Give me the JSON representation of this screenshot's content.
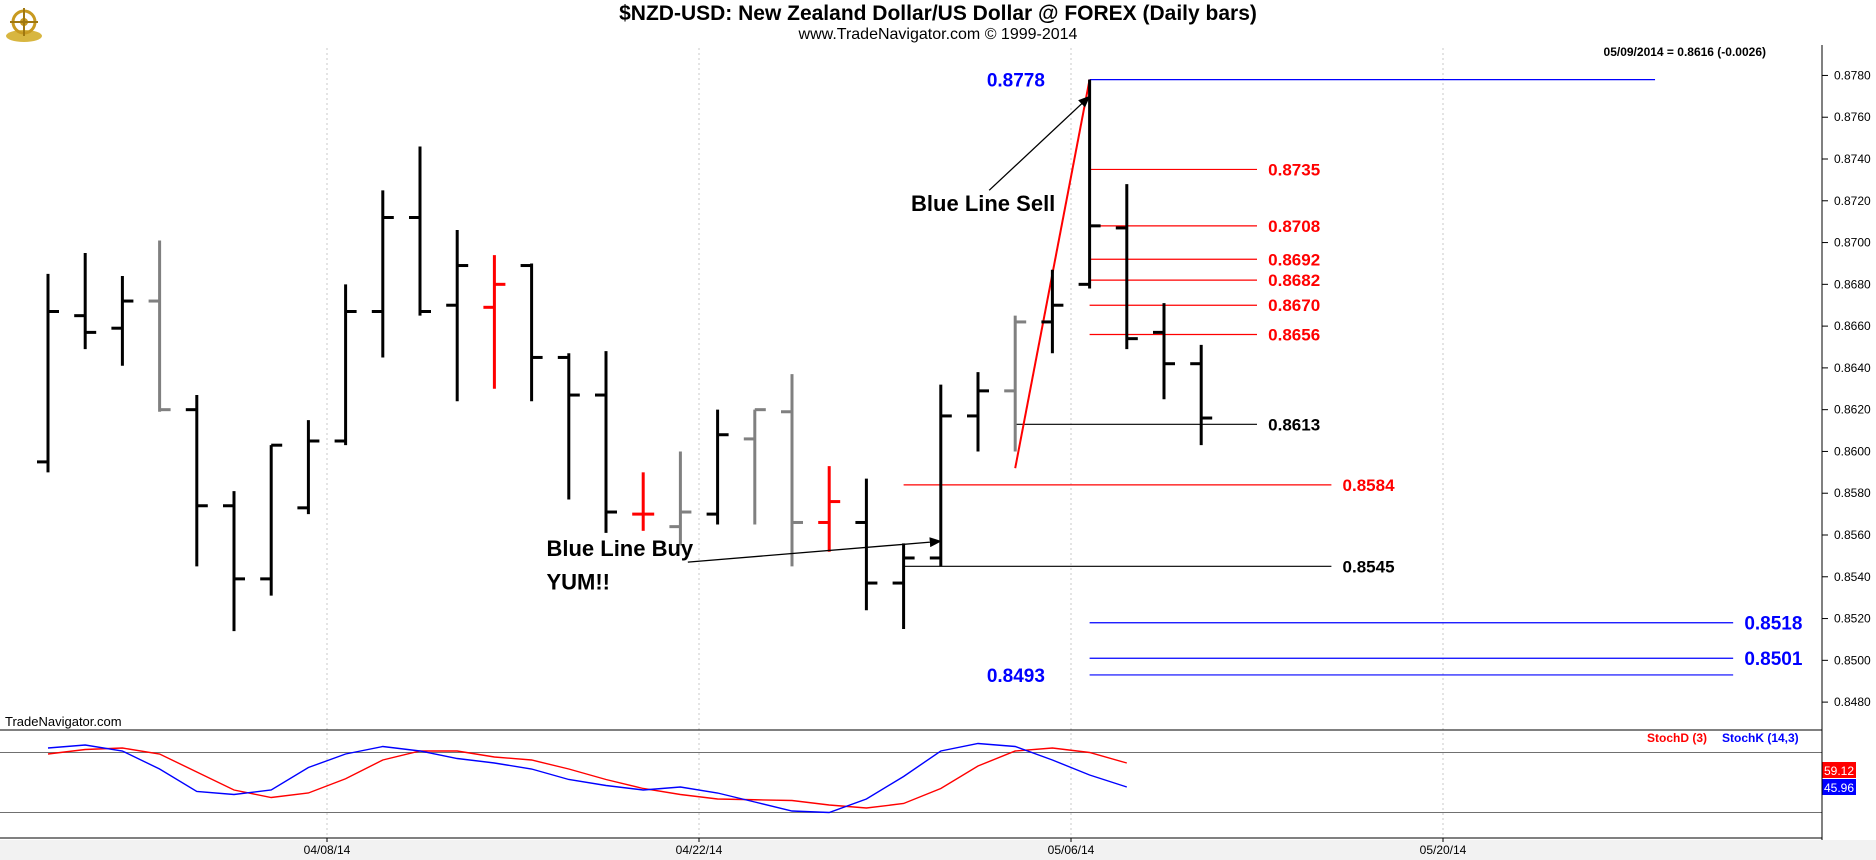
{
  "header": {
    "title": "$NZD-USD:  New Zealand Dollar/US Dollar @ FOREX  (Daily bars)",
    "subtitle": "www.TradeNavigator.com © 1999-2014"
  },
  "last_value_readout": "05/09/2014 = 0.8616 (-0.0026)",
  "watermark": "TradeNavigator.com",
  "colors": {
    "bar_black": "#000000",
    "bar_gray": "#808080",
    "bar_red": "#ff0000",
    "blue_line": "#0000ff",
    "red_line": "#ff0000"
  },
  "chart_data": {
    "type": "ohlc",
    "price_axis": {
      "ylim": [
        0.847,
        0.8785
      ],
      "ticks": [
        "0.8780",
        "0.8760",
        "0.8740",
        "0.8720",
        "0.8700",
        "0.8680",
        "0.8660",
        "0.8640",
        "0.8620",
        "0.8600",
        "0.8580",
        "0.8560",
        "0.8540",
        "0.8520",
        "0.8500",
        "0.8480"
      ]
    },
    "x_axis": {
      "tick_labels": [
        "04/08/14",
        "04/22/14",
        "05/06/14",
        "05/20/14"
      ],
      "tick_bar_index": [
        7.5,
        17.5,
        27.5,
        37.5
      ]
    },
    "bars": [
      {
        "o": 0.8595,
        "h": 0.8685,
        "l": 0.859,
        "c": 0.8667,
        "color": "black"
      },
      {
        "o": 0.8665,
        "h": 0.8695,
        "l": 0.8649,
        "c": 0.8657,
        "color": "black"
      },
      {
        "o": 0.8659,
        "h": 0.8684,
        "l": 0.8641,
        "c": 0.8672,
        "color": "black"
      },
      {
        "o": 0.8672,
        "h": 0.8701,
        "l": 0.8619,
        "c": 0.862,
        "color": "gray"
      },
      {
        "o": 0.862,
        "h": 0.8627,
        "l": 0.8545,
        "c": 0.8574,
        "color": "black"
      },
      {
        "o": 0.8574,
        "h": 0.8581,
        "l": 0.8514,
        "c": 0.8539,
        "color": "black"
      },
      {
        "o": 0.8539,
        "h": 0.8603,
        "l": 0.8531,
        "c": 0.8603,
        "color": "black"
      },
      {
        "o": 0.8573,
        "h": 0.8615,
        "l": 0.857,
        "c": 0.8605,
        "color": "black"
      },
      {
        "o": 0.8605,
        "h": 0.868,
        "l": 0.8603,
        "c": 0.8667,
        "color": "black"
      },
      {
        "o": 0.8667,
        "h": 0.8725,
        "l": 0.8645,
        "c": 0.8712,
        "color": "black"
      },
      {
        "o": 0.8712,
        "h": 0.8746,
        "l": 0.8665,
        "c": 0.8667,
        "color": "black"
      },
      {
        "o": 0.867,
        "h": 0.8706,
        "l": 0.8624,
        "c": 0.8689,
        "color": "black"
      },
      {
        "o": 0.8669,
        "h": 0.8694,
        "l": 0.863,
        "c": 0.868,
        "color": "red"
      },
      {
        "o": 0.8689,
        "h": 0.869,
        "l": 0.8624,
        "c": 0.8645,
        "color": "black"
      },
      {
        "o": 0.8645,
        "h": 0.8647,
        "l": 0.8577,
        "c": 0.8627,
        "color": "black"
      },
      {
        "o": 0.8627,
        "h": 0.8648,
        "l": 0.8561,
        "c": 0.8571,
        "color": "black"
      },
      {
        "o": 0.857,
        "h": 0.859,
        "l": 0.8562,
        "c": 0.857,
        "color": "red"
      },
      {
        "o": 0.8564,
        "h": 0.86,
        "l": 0.8555,
        "c": 0.8571,
        "color": "gray"
      },
      {
        "o": 0.857,
        "h": 0.862,
        "l": 0.8565,
        "c": 0.8608,
        "color": "black"
      },
      {
        "o": 0.8606,
        "h": 0.862,
        "l": 0.8565,
        "c": 0.862,
        "color": "gray"
      },
      {
        "o": 0.8619,
        "h": 0.8637,
        "l": 0.8545,
        "c": 0.8566,
        "color": "gray"
      },
      {
        "o": 0.8566,
        "h": 0.8593,
        "l": 0.8552,
        "c": 0.8576,
        "color": "red"
      },
      {
        "o": 0.8566,
        "h": 0.8587,
        "l": 0.8524,
        "c": 0.8537,
        "color": "black"
      },
      {
        "o": 0.8537,
        "h": 0.8556,
        "l": 0.8515,
        "c": 0.8549,
        "color": "black"
      },
      {
        "o": 0.8549,
        "h": 0.8632,
        "l": 0.8545,
        "c": 0.8617,
        "color": "black"
      },
      {
        "o": 0.8617,
        "h": 0.8638,
        "l": 0.86,
        "c": 0.8629,
        "color": "black"
      },
      {
        "o": 0.8629,
        "h": 0.8665,
        "l": 0.86,
        "c": 0.8662,
        "color": "gray"
      },
      {
        "o": 0.8662,
        "h": 0.8687,
        "l": 0.8647,
        "c": 0.867,
        "color": "black"
      },
      {
        "o": 0.868,
        "h": 0.8778,
        "l": 0.8678,
        "c": 0.8708,
        "color": "black"
      },
      {
        "o": 0.8707,
        "h": 0.8728,
        "l": 0.8649,
        "c": 0.8654,
        "color": "black"
      },
      {
        "o": 0.8657,
        "h": 0.8671,
        "l": 0.8625,
        "c": 0.8642,
        "color": "black"
      },
      {
        "o": 0.8642,
        "h": 0.8651,
        "l": 0.8603,
        "c": 0.8616,
        "color": "black"
      }
    ],
    "levels": [
      {
        "value": 0.8778,
        "label": "0.8778",
        "color": "blue",
        "from_bar": 28,
        "to_bar": 43.2,
        "label_side": "left",
        "label_bar": 26.8
      },
      {
        "value": 0.8735,
        "label": "0.8735",
        "color": "red",
        "from_bar": 28,
        "to_bar": 32.5,
        "label_side": "right",
        "label_bar": 32.8
      },
      {
        "value": 0.8708,
        "label": "0.8708",
        "color": "red",
        "from_bar": 28,
        "to_bar": 32.5,
        "label_side": "right",
        "label_bar": 32.8
      },
      {
        "value": 0.8692,
        "label": "0.8692",
        "color": "red",
        "from_bar": 28,
        "to_bar": 32.5,
        "label_side": "right",
        "label_bar": 32.8
      },
      {
        "value": 0.8682,
        "label": "0.8682",
        "color": "red",
        "from_bar": 28,
        "to_bar": 32.5,
        "label_side": "right",
        "label_bar": 32.8
      },
      {
        "value": 0.867,
        "label": "0.8670",
        "color": "red",
        "from_bar": 28,
        "to_bar": 32.5,
        "label_side": "right",
        "label_bar": 32.8
      },
      {
        "value": 0.8656,
        "label": "0.8656",
        "color": "red",
        "from_bar": 28,
        "to_bar": 32.5,
        "label_side": "right",
        "label_bar": 32.8
      },
      {
        "value": 0.8613,
        "label": "0.8613",
        "color": "black",
        "from_bar": 26,
        "to_bar": 32.5,
        "label_side": "right",
        "label_bar": 32.8
      },
      {
        "value": 0.8584,
        "label": "0.8584",
        "color": "red",
        "from_bar": 23,
        "to_bar": 34.5,
        "label_side": "right",
        "label_bar": 34.8
      },
      {
        "value": 0.8545,
        "label": "0.8545",
        "color": "black",
        "from_bar": 23,
        "to_bar": 34.5,
        "label_side": "right",
        "label_bar": 34.8
      },
      {
        "value": 0.8518,
        "label": "0.8518",
        "color": "blue",
        "from_bar": 28,
        "to_bar": 45.3,
        "label_side": "right",
        "label_bar": 45.6
      },
      {
        "value": 0.8501,
        "label": "0.8501",
        "color": "blue",
        "from_bar": 28,
        "to_bar": 45.3,
        "label_side": "right",
        "label_bar": 45.6
      },
      {
        "value": 0.8493,
        "label": "0.8493",
        "color": "blue",
        "from_bar": 28,
        "to_bar": 45.3,
        "label_side": "left",
        "label_bar": 26.8
      }
    ],
    "trend_line": {
      "color": "red",
      "from": {
        "bar": 26,
        "price": 0.8592
      },
      "to": {
        "bar": 28,
        "price": 0.8778
      }
    },
    "annotations": [
      {
        "text": "Blue Line Sell",
        "bar": 23.2,
        "price": 0.8715,
        "arrow_from": {
          "bar": 25.3,
          "price": 0.8725
        },
        "arrow_to": {
          "bar": 28,
          "price": 0.877
        }
      },
      {
        "text": "Blue Line Buy",
        "bar": 13.4,
        "price": 0.855,
        "arrow_from": {
          "bar": 17.2,
          "price": 0.8547
        },
        "arrow_to": {
          "bar": 24,
          "price": 0.8557
        }
      },
      {
        "text": "YUM!!",
        "bar": 13.4,
        "price": 0.8534
      }
    ],
    "stochastic": {
      "legend": [
        "StochD (3)",
        "StochK (14,3)"
      ],
      "d_value_label": "59.12",
      "k_value_label": "45.96",
      "ylim": [
        0,
        100
      ],
      "stoch_d": [
        88,
        94,
        96,
        88,
        64,
        40,
        30,
        36,
        55,
        80,
        92,
        92,
        84,
        80,
        68,
        54,
        42,
        34,
        28,
        27,
        26,
        20,
        16,
        22,
        42,
        72,
        92,
        96,
        90,
        76
      ],
      "stoch_k": [
        96,
        100,
        92,
        68,
        38,
        34,
        40,
        70,
        88,
        98,
        92,
        82,
        76,
        68,
        54,
        46,
        40,
        44,
        36,
        24,
        12,
        10,
        28,
        58,
        92,
        102,
        98,
        80,
        60,
        44
      ]
    }
  }
}
